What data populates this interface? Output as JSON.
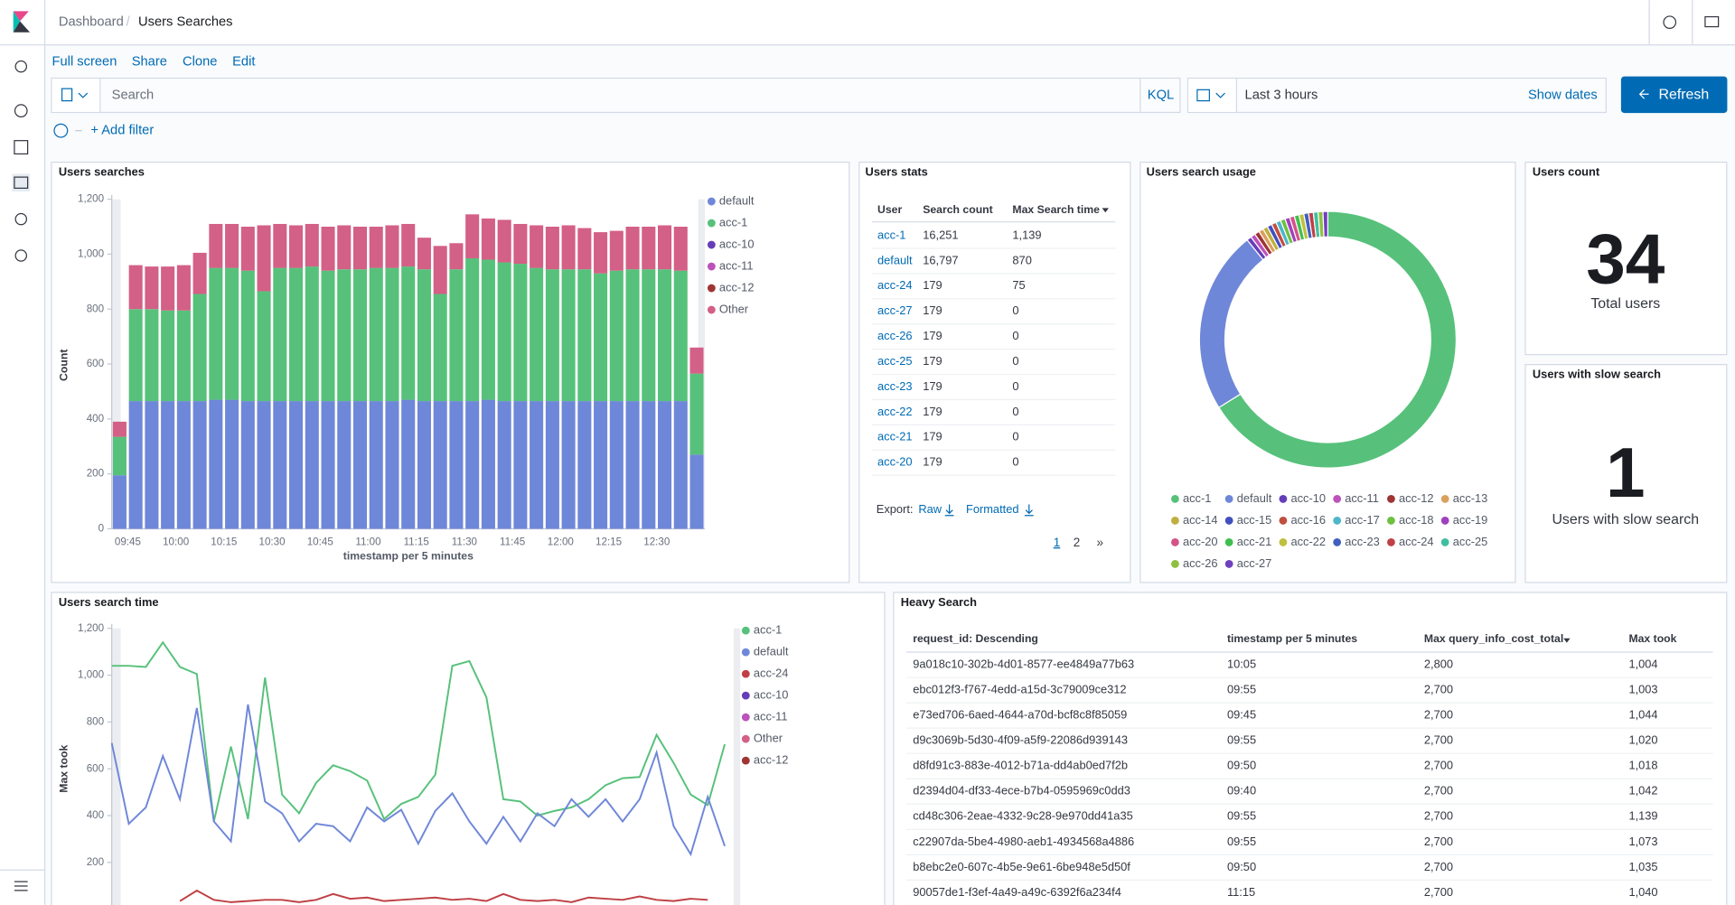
{
  "header": {
    "breadcrumbs": [
      "Dashboard",
      "Users Searches"
    ]
  },
  "menu": [
    "Full screen",
    "Share",
    "Clone",
    "Edit"
  ],
  "query": {
    "placeholder": "Search",
    "language": "KQL",
    "time": "Last 3 hours",
    "show_dates": "Show dates",
    "refresh": "Refresh"
  },
  "filter": {
    "add": "+ Add filter"
  },
  "chart_data": [
    {
      "type": "bar",
      "stacked": true,
      "title": "Users searches",
      "y_label": "Count",
      "x_label": "timestamp per 5 minutes",
      "legend": "right",
      "categories": [
        null,
        "09:45",
        null,
        null,
        "10:00",
        null,
        null,
        "10:15",
        null,
        null,
        "10:30",
        null,
        null,
        "10:45",
        null,
        null,
        "11:00",
        null,
        null,
        "11:15",
        null,
        null,
        "11:30",
        null,
        null,
        "11:45",
        null,
        null,
        "12:00",
        null,
        null,
        "12:15",
        null,
        null,
        "12:30",
        null,
        null
      ],
      "ylim": [
        0,
        1200
      ],
      "yticks": [
        0,
        200,
        400,
        600,
        800,
        {
          "value": 1000,
          "label": "1,000"
        },
        {
          "value": 1200,
          "label": "1,200"
        }
      ],
      "series": [
        {
          "name": "default",
          "color": "#6f87d8",
          "values": [
            195,
            465,
            465,
            465,
            465,
            465,
            470,
            470,
            465,
            465,
            465,
            465,
            465,
            465,
            465,
            465,
            465,
            465,
            470,
            465,
            465,
            465,
            465,
            470,
            465,
            465,
            465,
            465,
            465,
            465,
            465,
            465,
            465,
            465,
            465,
            465,
            270
          ]
        },
        {
          "name": "acc-1",
          "color": "#57c17b",
          "values": [
            140,
            335,
            335,
            330,
            330,
            390,
            480,
            480,
            475,
            400,
            485,
            485,
            490,
            475,
            480,
            480,
            485,
            485,
            485,
            480,
            390,
            480,
            520,
            510,
            505,
            500,
            485,
            480,
            480,
            480,
            465,
            475,
            480,
            480,
            480,
            475,
            295
          ]
        },
        {
          "name": "acc-10",
          "color": "#663db8",
          "values": [
            0,
            0,
            0,
            0,
            0,
            0,
            0,
            0,
            0,
            0,
            0,
            0,
            0,
            0,
            0,
            0,
            0,
            0,
            0,
            0,
            0,
            0,
            0,
            0,
            0,
            0,
            0,
            0,
            0,
            0,
            0,
            0,
            0,
            0,
            0,
            0,
            0
          ]
        },
        {
          "name": "acc-11",
          "color": "#bc52bc",
          "values": [
            0,
            0,
            0,
            0,
            0,
            0,
            0,
            0,
            0,
            0,
            0,
            0,
            0,
            0,
            0,
            0,
            0,
            0,
            0,
            0,
            0,
            0,
            0,
            0,
            0,
            0,
            0,
            0,
            0,
            0,
            0,
            0,
            0,
            0,
            0,
            0,
            0
          ]
        },
        {
          "name": "acc-12",
          "color": "#9e3533",
          "values": [
            0,
            0,
            0,
            0,
            0,
            0,
            0,
            0,
            0,
            0,
            0,
            0,
            0,
            0,
            0,
            0,
            0,
            0,
            0,
            0,
            0,
            0,
            0,
            0,
            0,
            0,
            0,
            0,
            0,
            0,
            0,
            0,
            0,
            0,
            0,
            0,
            0
          ]
        },
        {
          "name": "Other",
          "color": "#d36086",
          "values": [
            55,
            160,
            155,
            160,
            165,
            150,
            160,
            160,
            160,
            240,
            160,
            155,
            155,
            160,
            160,
            155,
            150,
            155,
            155,
            115,
            175,
            95,
            160,
            150,
            155,
            145,
            155,
            155,
            160,
            150,
            150,
            145,
            155,
            155,
            160,
            160,
            95
          ]
        }
      ]
    },
    {
      "type": "pie",
      "donut": true,
      "title": "Users search usage",
      "legend": "bottom",
      "categories": [
        "acc-1",
        "default",
        "acc-10",
        "acc-11",
        "acc-12",
        "acc-13",
        "acc-14",
        "acc-15",
        "acc-16",
        "acc-17",
        "acc-18",
        "acc-19",
        "acc-20",
        "acc-21",
        "acc-22",
        "acc-23",
        "acc-24",
        "acc-25",
        "acc-26",
        "acc-27"
      ],
      "values": [
        66,
        23,
        0.6,
        0.6,
        0.6,
        0.6,
        0.6,
        0.6,
        0.6,
        0.6,
        0.6,
        0.6,
        0.6,
        0.6,
        0.6,
        0.6,
        0.6,
        0.6,
        0.6,
        0.6
      ],
      "colors": [
        "#57c17b",
        "#6f87d8",
        "#663db8",
        "#bc52bc",
        "#9e3533",
        "#daa05d",
        "#bfaf40",
        "#4050bf",
        "#bf5040",
        "#4db6c9",
        "#70c040",
        "#a040bf",
        "#d45288",
        "#40bf50",
        "#bfbf40",
        "#4060bf",
        "#bf4045",
        "#40bfa0",
        "#8fc040",
        "#7040bf"
      ]
    },
    {
      "type": "line",
      "title": "Users search time",
      "y_label": "Max took",
      "legend": "right",
      "categories": [
        null,
        null,
        null,
        null,
        null,
        null,
        null,
        null,
        null,
        null,
        null,
        null,
        null,
        null,
        null,
        null,
        null,
        null,
        null,
        null,
        null,
        null,
        null,
        null,
        null,
        null,
        null,
        null,
        null,
        null,
        null,
        null,
        null,
        null,
        null,
        null,
        null
      ],
      "ylim": [
        0,
        1200
      ],
      "yticks": [
        200,
        400,
        600,
        800,
        {
          "value": 1000,
          "label": "1,000"
        },
        {
          "value": 1200,
          "label": "1,200"
        }
      ],
      "series": [
        {
          "name": "acc-1",
          "color": "#57c17b",
          "values": [
            1040,
            1040,
            1035,
            1140,
            1035,
            1005,
            375,
            695,
            385,
            990,
            490,
            410,
            540,
            615,
            590,
            550,
            385,
            450,
            480,
            575,
            1040,
            1060,
            905,
            470,
            460,
            400,
            420,
            435,
            470,
            530,
            560,
            565,
            745,
            625,
            490,
            445,
            705
          ]
        },
        {
          "name": "default",
          "color": "#6f87d8",
          "values": [
            710,
            365,
            435,
            655,
            470,
            860,
            375,
            290,
            875,
            460,
            410,
            290,
            365,
            355,
            290,
            435,
            375,
            425,
            280,
            420,
            495,
            375,
            280,
            395,
            290,
            410,
            355,
            470,
            395,
            470,
            375,
            470,
            670,
            355,
            235,
            480,
            270
          ]
        },
        {
          "name": "acc-24",
          "color": "#bf4045",
          "values": [
            null,
            null,
            null,
            null,
            35,
            80,
            40,
            30,
            35,
            40,
            40,
            30,
            40,
            65,
            45,
            50,
            35,
            40,
            45,
            50,
            40,
            45,
            35,
            65,
            40,
            35,
            40,
            30,
            50,
            45,
            40,
            55,
            40,
            35,
            45,
            40,
            null
          ]
        },
        {
          "name": "acc-10",
          "color": "#663db8",
          "values": [
            0,
            0,
            0,
            0,
            0,
            0,
            0,
            0,
            0,
            0,
            0,
            0,
            0,
            0,
            0,
            0,
            0,
            0,
            0,
            0,
            0,
            0,
            0,
            0,
            0,
            0,
            0,
            0,
            0,
            0,
            0,
            0,
            0,
            0,
            0,
            0,
            0
          ]
        },
        {
          "name": "acc-11",
          "color": "#bc52bc",
          "values": [
            0,
            0,
            0,
            0,
            0,
            0,
            0,
            0,
            0,
            0,
            0,
            0,
            0,
            0,
            0,
            0,
            0,
            0,
            0,
            0,
            0,
            0,
            0,
            0,
            0,
            0,
            0,
            0,
            0,
            0,
            0,
            0,
            0,
            0,
            0,
            0,
            0
          ]
        },
        {
          "name": "Other",
          "color": "#d36086",
          "values": [
            0,
            0,
            0,
            0,
            0,
            0,
            0,
            0,
            0,
            0,
            0,
            0,
            0,
            0,
            0,
            0,
            0,
            0,
            0,
            0,
            0,
            0,
            0,
            0,
            0,
            0,
            0,
            0,
            0,
            0,
            0,
            0,
            0,
            0,
            0,
            0,
            0
          ]
        },
        {
          "name": "acc-12",
          "color": "#9e3533",
          "values": [
            0,
            0,
            0,
            0,
            0,
            0,
            0,
            0,
            0,
            0,
            0,
            0,
            0,
            0,
            0,
            0,
            0,
            0,
            0,
            0,
            0,
            0,
            0,
            0,
            0,
            0,
            0,
            0,
            0,
            0,
            0,
            0,
            0,
            0,
            0,
            0,
            0
          ]
        }
      ]
    }
  ],
  "stats_table": {
    "title": "Users stats",
    "columns": [
      "User",
      "Search count",
      "Max Search time"
    ],
    "rows": [
      [
        "acc-1",
        "16,251",
        "1,139"
      ],
      [
        "default",
        "16,797",
        "870"
      ],
      [
        "acc-24",
        "179",
        "75"
      ],
      [
        "acc-27",
        "179",
        "0"
      ],
      [
        "acc-26",
        "179",
        "0"
      ],
      [
        "acc-25",
        "179",
        "0"
      ],
      [
        "acc-23",
        "179",
        "0"
      ],
      [
        "acc-22",
        "179",
        "0"
      ],
      [
        "acc-21",
        "179",
        "0"
      ],
      [
        "acc-20",
        "179",
        "0"
      ]
    ],
    "export_label": "Export:",
    "export_links": [
      "Raw",
      "Formatted"
    ],
    "pages": [
      "1",
      "2"
    ],
    "next": "»"
  },
  "metrics": [
    {
      "title": "Users count",
      "value": 34,
      "label": "Total users"
    },
    {
      "title": "Users with slow search",
      "value": 1,
      "label": "Users with slow search"
    }
  ],
  "heavy_table": {
    "title": "Heavy Search",
    "columns": [
      "request_id: Descending",
      "timestamp per 5 minutes",
      "Max query_info_cost_total",
      "Max took"
    ],
    "rows": [
      [
        "9a018c10-302b-4d01-8577-ee4849a77b63",
        "10:05",
        "2,800",
        "1,004"
      ],
      [
        "ebc012f3-f767-4edd-a15d-3c79009ce312",
        "09:55",
        "2,700",
        "1,003"
      ],
      [
        "e73ed706-6aed-4644-a70d-bcf8c8f85059",
        "09:45",
        "2,700",
        "1,044"
      ],
      [
        "d9c3069b-5d30-4f09-a5f9-22086d939143",
        "09:55",
        "2,700",
        "1,020"
      ],
      [
        "d8fd91c3-883e-4012-b71a-dd4ab0ed7f2b",
        "09:50",
        "2,700",
        "1,018"
      ],
      [
        "d2394d04-df33-4ece-b7b4-0595969c0dd3",
        "09:40",
        "2,700",
        "1,042"
      ],
      [
        "cd48c306-2eae-4332-9c28-9e970dd41a35",
        "09:55",
        "2,700",
        "1,139"
      ],
      [
        "c22907da-5be4-4980-aeb1-4934568a4886",
        "09:55",
        "2,700",
        "1,073"
      ],
      [
        "b8ebc2e0-607c-4b5e-9e61-6be948e5d50f",
        "09:50",
        "2,700",
        "1,035"
      ],
      [
        "90057de1-f3ef-4a49-a49c-6392f6a234f4",
        "11:15",
        "2,700",
        "1,040"
      ]
    ]
  }
}
